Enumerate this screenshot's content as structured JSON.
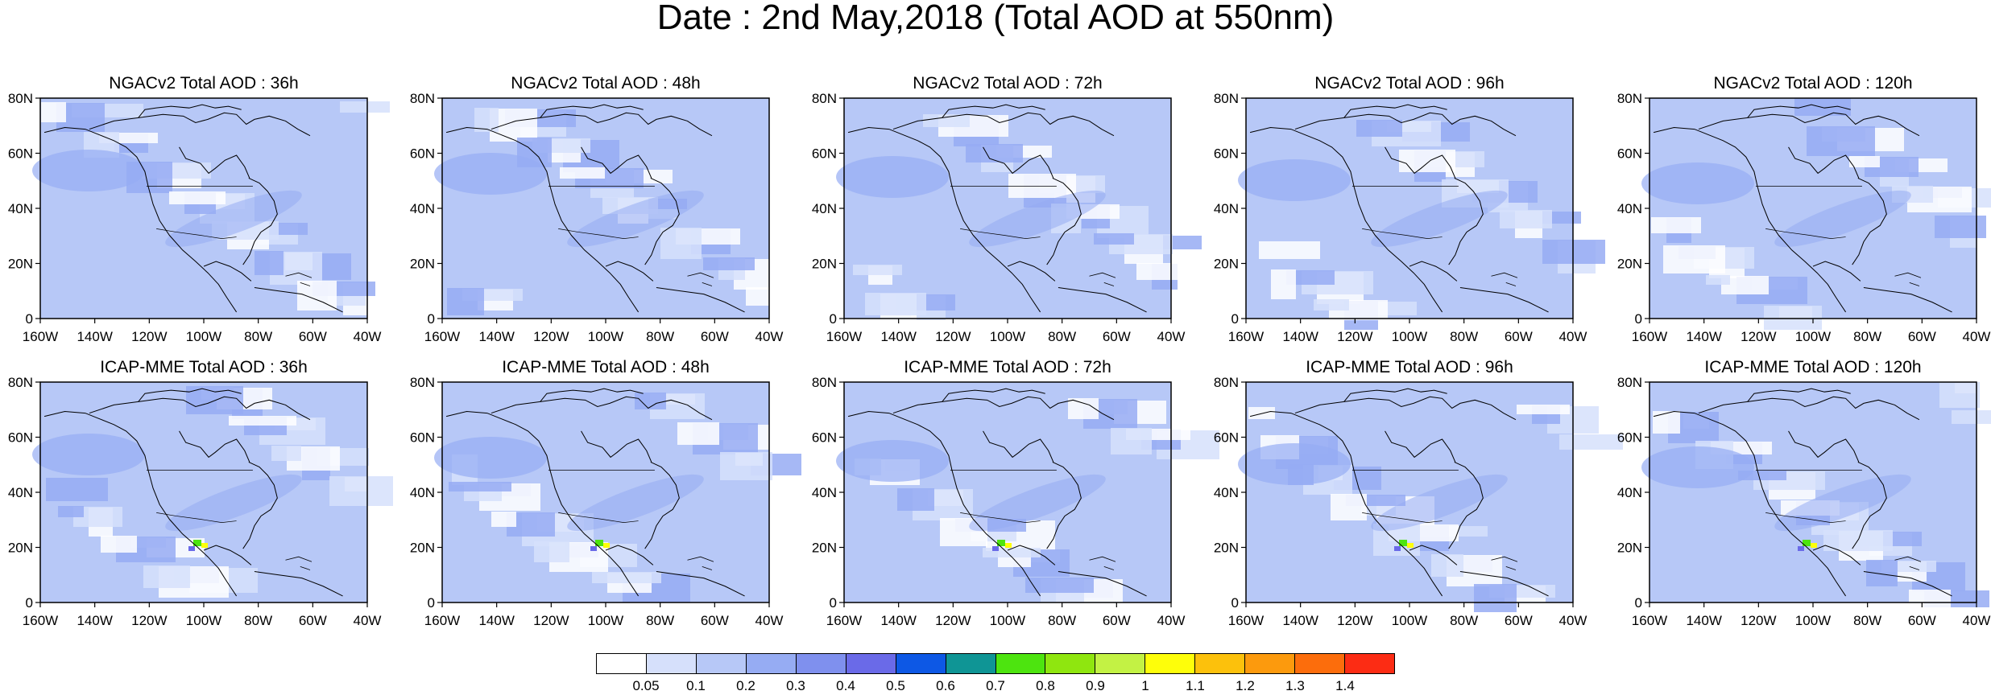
{
  "title": "Date : 2nd May,2018 (Total AOD at 550nm)",
  "panels": [
    {
      "title": "NGACv2 Total AOD : 36h",
      "lead_hours": 36,
      "model": "NGACv2"
    },
    {
      "title": "NGACv2 Total AOD : 48h",
      "lead_hours": 48,
      "model": "NGACv2"
    },
    {
      "title": "NGACv2 Total AOD : 72h",
      "lead_hours": 72,
      "model": "NGACv2"
    },
    {
      "title": "NGACv2 Total AOD : 96h",
      "lead_hours": 96,
      "model": "NGACv2"
    },
    {
      "title": "NGACv2 Total AOD : 120h",
      "lead_hours": 120,
      "model": "NGACv2"
    },
    {
      "title": "ICAP-MME Total AOD : 36h",
      "lead_hours": 36,
      "model": "ICAP-MME"
    },
    {
      "title": "ICAP-MME Total AOD : 48h",
      "lead_hours": 48,
      "model": "ICAP-MME"
    },
    {
      "title": "ICAP-MME Total AOD : 72h",
      "lead_hours": 72,
      "model": "ICAP-MME"
    },
    {
      "title": "ICAP-MME Total AOD : 96h",
      "lead_hours": 96,
      "model": "ICAP-MME"
    },
    {
      "title": "ICAP-MME Total AOD : 120h",
      "lead_hours": 120,
      "model": "ICAP-MME"
    }
  ],
  "axes": {
    "lat_labels": [
      "80N",
      "60N",
      "40N",
      "20N",
      "0"
    ],
    "lon_labels": [
      "160W",
      "140W",
      "120W",
      "100W",
      "80W",
      "60W",
      "40W"
    ],
    "lat_range": [
      0,
      80
    ],
    "lon_range": [
      -160,
      -40
    ]
  },
  "colorbar": {
    "colors": [
      "#ffffff",
      "#d6e0fb",
      "#b7c8f7",
      "#96acf3",
      "#7f90ee",
      "#6a6ae8",
      "#0d58e5",
      "#0f9595",
      "#4de40f",
      "#8fe60f",
      "#c3f244",
      "#fefe0a",
      "#fcc10c",
      "#fc9a0d",
      "#fc6d0c",
      "#fc2c14"
    ],
    "labels": [
      "0.05",
      "0.1",
      "0.2",
      "0.3",
      "0.4",
      "0.5",
      "0.6",
      "0.7",
      "0.8",
      "0.9",
      "1",
      "1.1",
      "1.2",
      "1.3",
      "1.4"
    ]
  },
  "style": {
    "land_line": "#000000",
    "base_aod_color": "#b7c8f7"
  }
}
